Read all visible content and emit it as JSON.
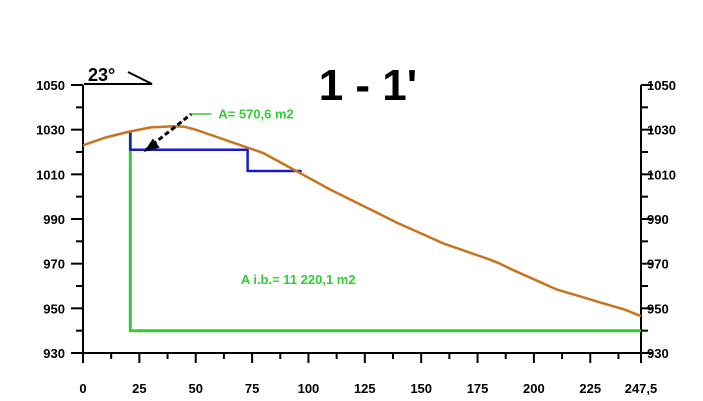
{
  "chart_data": {
    "type": "line",
    "title": "1 - 1'",
    "angle_label": "23°",
    "xlim": [
      0,
      247.5
    ],
    "ylim": [
      930,
      1050
    ],
    "x_ticks": [
      "0",
      "25",
      "50",
      "75",
      "100",
      "125",
      "150",
      "175",
      "200",
      "225",
      "247,5"
    ],
    "x_tick_values": [
      0,
      25,
      50,
      75,
      100,
      125,
      150,
      175,
      200,
      225,
      247.5
    ],
    "y_ticks": [
      "1050",
      "1030",
      "1010",
      "990",
      "970",
      "950",
      "930"
    ],
    "y_tick_values": [
      1050,
      1030,
      1010,
      990,
      970,
      950,
      930
    ],
    "grid": false,
    "colors": {
      "terrain": "#c8741e",
      "boundary": "#33cc33",
      "excavation": "#1a1acc",
      "axis": "#000000"
    },
    "terrain_profile": {
      "x": [
        0,
        10,
        20,
        30,
        40,
        45,
        50,
        60,
        70,
        80,
        90,
        100,
        110,
        120,
        130,
        140,
        150,
        160,
        170,
        180,
        185,
        190,
        200,
        210,
        220,
        230,
        240,
        247.5
      ],
      "y": [
        1023,
        1026.5,
        1029,
        1031,
        1031.5,
        1031.3,
        1030,
        1026.5,
        1023,
        1019.5,
        1014,
        1008.5,
        1003,
        998,
        993,
        988,
        983.5,
        979,
        975.5,
        972,
        970,
        967.5,
        963,
        958.5,
        955.5,
        952.5,
        949.5,
        946.5
      ]
    },
    "boundary_outline": {
      "x": [
        21,
        21,
        247.5
      ],
      "y": [
        1029,
        940,
        940
      ]
    },
    "excavation_outline": {
      "x": [
        21,
        21,
        73,
        73,
        97
      ],
      "y": [
        1029,
        1021,
        1021,
        1011.5,
        1011.5
      ]
    },
    "annotations": [
      {
        "text": "A= 570,6 m2",
        "color": "#33cc33",
        "x": 60,
        "y": 1035
      },
      {
        "text": "A i.b.= 11 220,1 m2",
        "color": "#33cc33",
        "x": 70,
        "y": 961
      }
    ]
  }
}
